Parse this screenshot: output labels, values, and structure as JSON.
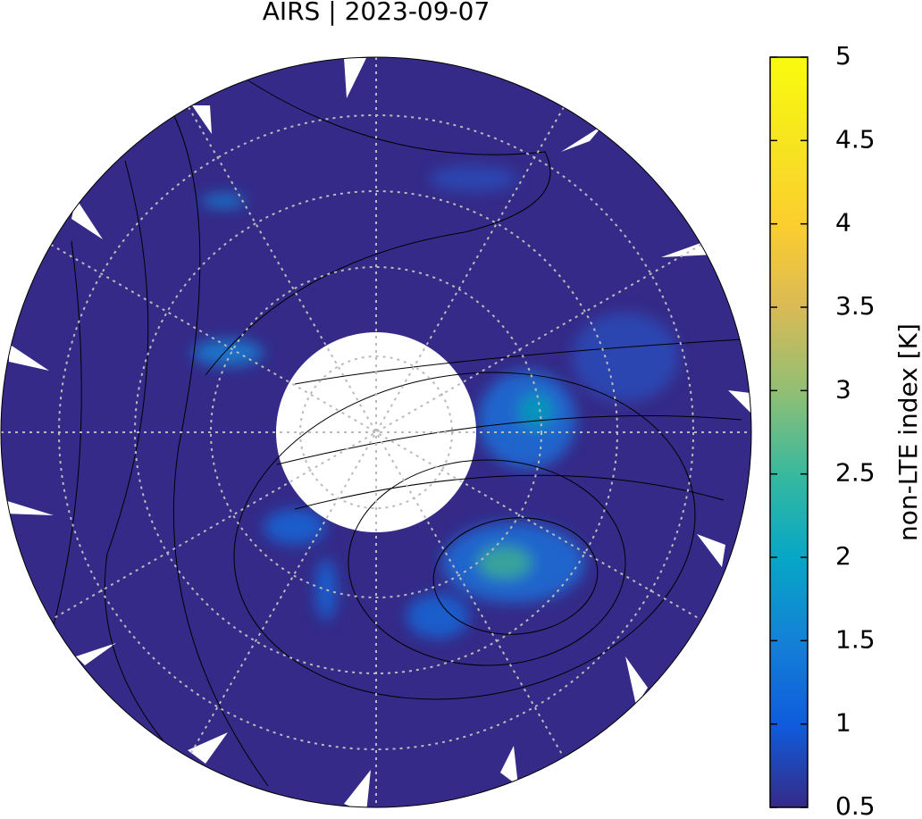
{
  "title": "AIRS | 2023-09-07",
  "colorbar": {
    "label": "non-LTE index [K]",
    "range": [
      0.5,
      5
    ],
    "ticks": [
      0.5,
      1,
      1.5,
      2,
      2.5,
      3,
      3.5,
      4,
      4.5,
      5
    ],
    "colors": [
      "#352a87",
      "#0f5cdd",
      "#1481d6",
      "#06a7c6",
      "#38b99e",
      "#92bf73",
      "#d9ba56",
      "#fcce2e",
      "#f6e51f",
      "#f9fb0e"
    ]
  }
}
